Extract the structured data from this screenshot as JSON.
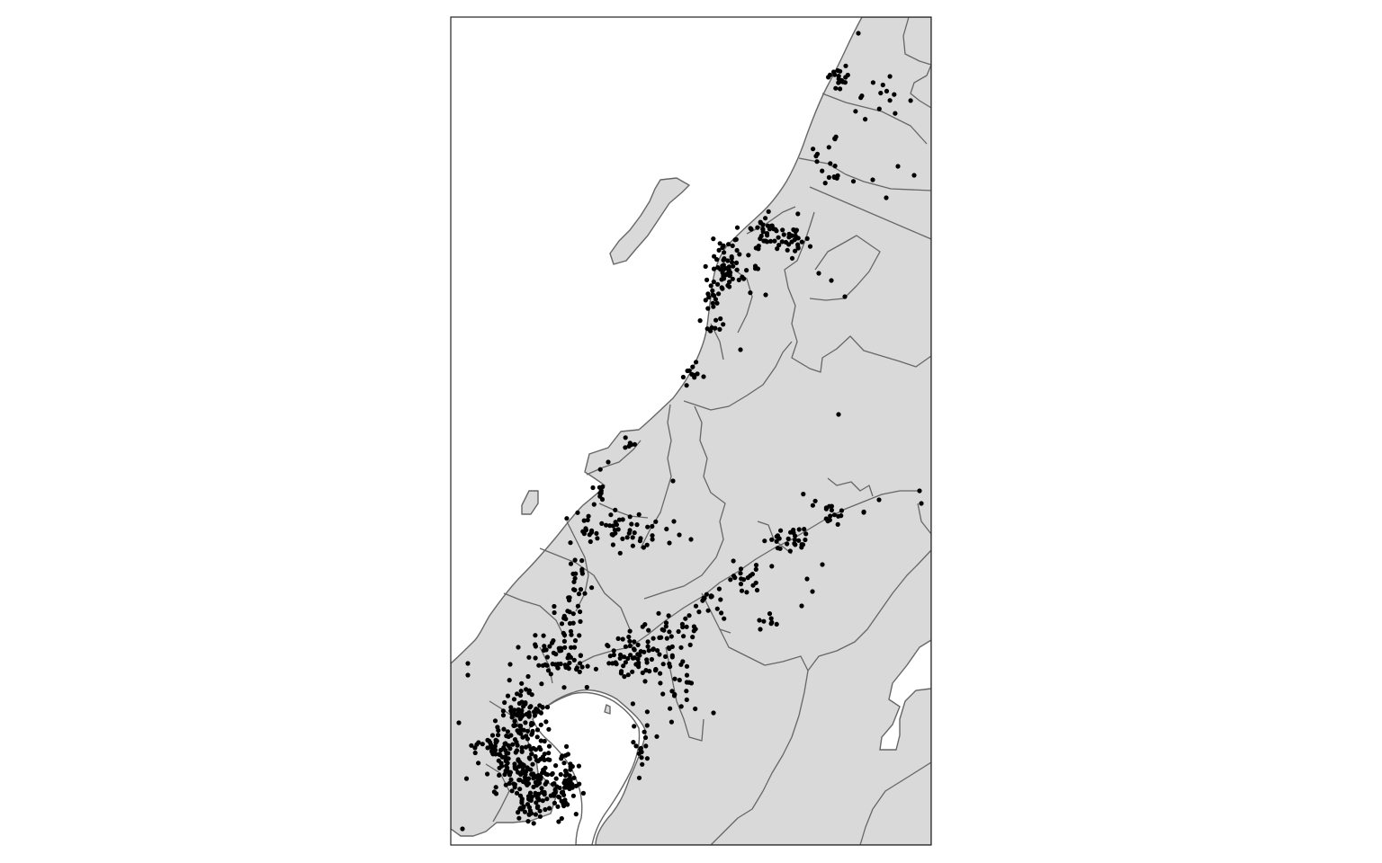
{
  "map": {
    "type": "point-map",
    "background_color": "#ffffff",
    "land_color": "#d9d9d9",
    "boundary_color": "#666666",
    "point_color": "#000000",
    "legend": "none",
    "title": ""
  }
}
